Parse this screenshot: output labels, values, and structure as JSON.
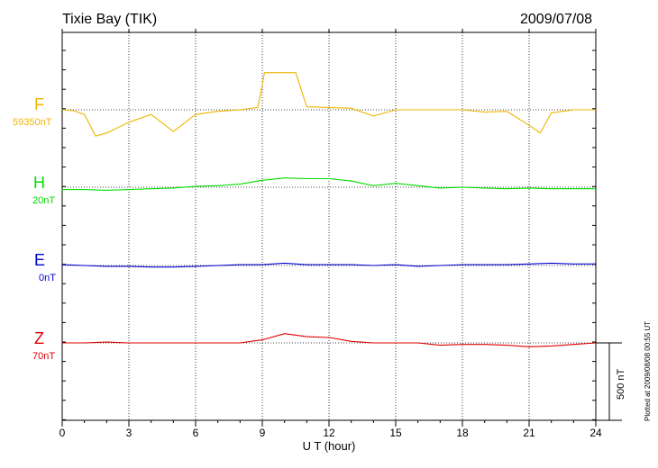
{
  "header": {
    "station": "Tixie Bay (TIK)",
    "date": "2009/07/08"
  },
  "footer": {
    "plotted": "Plotted at 2009/08/08 00:55 UT"
  },
  "chart_data": {
    "type": "line",
    "title": "Tixie Bay (TIK)",
    "date": "2009/07/08",
    "xlabel": "U T (hour)",
    "xlim": [
      0,
      24
    ],
    "xticks": [
      "0",
      "3",
      "6",
      "9",
      "12",
      "15",
      "18",
      "21",
      "24"
    ],
    "scale_bar": "500 nT",
    "grid": "dotted vertical lines every 3 hours; dotted baseline per component",
    "colors": {
      "F": "#f0b400",
      "H": "#00dd00",
      "E": "#0000cc",
      "Z": "#dd0000"
    },
    "series": [
      {
        "name": "F",
        "baseline": "59350nT",
        "x": [
          0,
          0.5,
          1,
          1.5,
          2,
          3,
          4,
          5,
          6,
          7,
          8,
          8.8,
          9.1,
          9.5,
          10,
          10.5,
          11,
          12,
          13,
          14,
          15,
          16,
          17,
          18,
          19,
          20,
          21,
          21.5,
          22,
          23,
          24
        ],
        "values": [
          0,
          -5,
          -30,
          -170,
          -150,
          -80,
          -30,
          -140,
          -30,
          -10,
          0,
          15,
          240,
          240,
          240,
          240,
          20,
          15,
          10,
          -40,
          0,
          0,
          0,
          0,
          -15,
          -10,
          -100,
          -150,
          -20,
          0,
          0
        ]
      },
      {
        "name": "H",
        "baseline": "20nT",
        "x": [
          0,
          1,
          2,
          3,
          4,
          5,
          6,
          7,
          8,
          9,
          10,
          11,
          12,
          13,
          14,
          15,
          16,
          17,
          18,
          19,
          20,
          21,
          22,
          23,
          24
        ],
        "values": [
          -15,
          -15,
          -20,
          -15,
          -10,
          -5,
          5,
          10,
          20,
          45,
          60,
          55,
          55,
          40,
          10,
          25,
          10,
          -5,
          0,
          -5,
          -10,
          -5,
          -10,
          -10,
          -10
        ]
      },
      {
        "name": "E",
        "baseline": "0nT",
        "x": [
          0,
          1,
          2,
          3,
          4,
          5,
          6,
          7,
          8,
          9,
          10,
          11,
          12,
          13,
          14,
          15,
          16,
          17,
          18,
          19,
          20,
          21,
          22,
          23,
          24
        ],
        "values": [
          5,
          0,
          -5,
          -5,
          -10,
          -10,
          -5,
          0,
          5,
          5,
          15,
          5,
          5,
          5,
          0,
          5,
          -5,
          0,
          5,
          5,
          5,
          10,
          15,
          10,
          10
        ]
      },
      {
        "name": "Z",
        "baseline": "70nT",
        "x": [
          0,
          1,
          2,
          3,
          4,
          5,
          6,
          7,
          8,
          9,
          10,
          11,
          12,
          13,
          14,
          15,
          16,
          17,
          18,
          19,
          20,
          21,
          22,
          23,
          24
        ],
        "values": [
          0,
          0,
          5,
          0,
          0,
          0,
          0,
          0,
          0,
          20,
          60,
          40,
          35,
          10,
          0,
          0,
          0,
          -15,
          -10,
          -10,
          -15,
          -25,
          -20,
          -10,
          0
        ]
      }
    ]
  }
}
